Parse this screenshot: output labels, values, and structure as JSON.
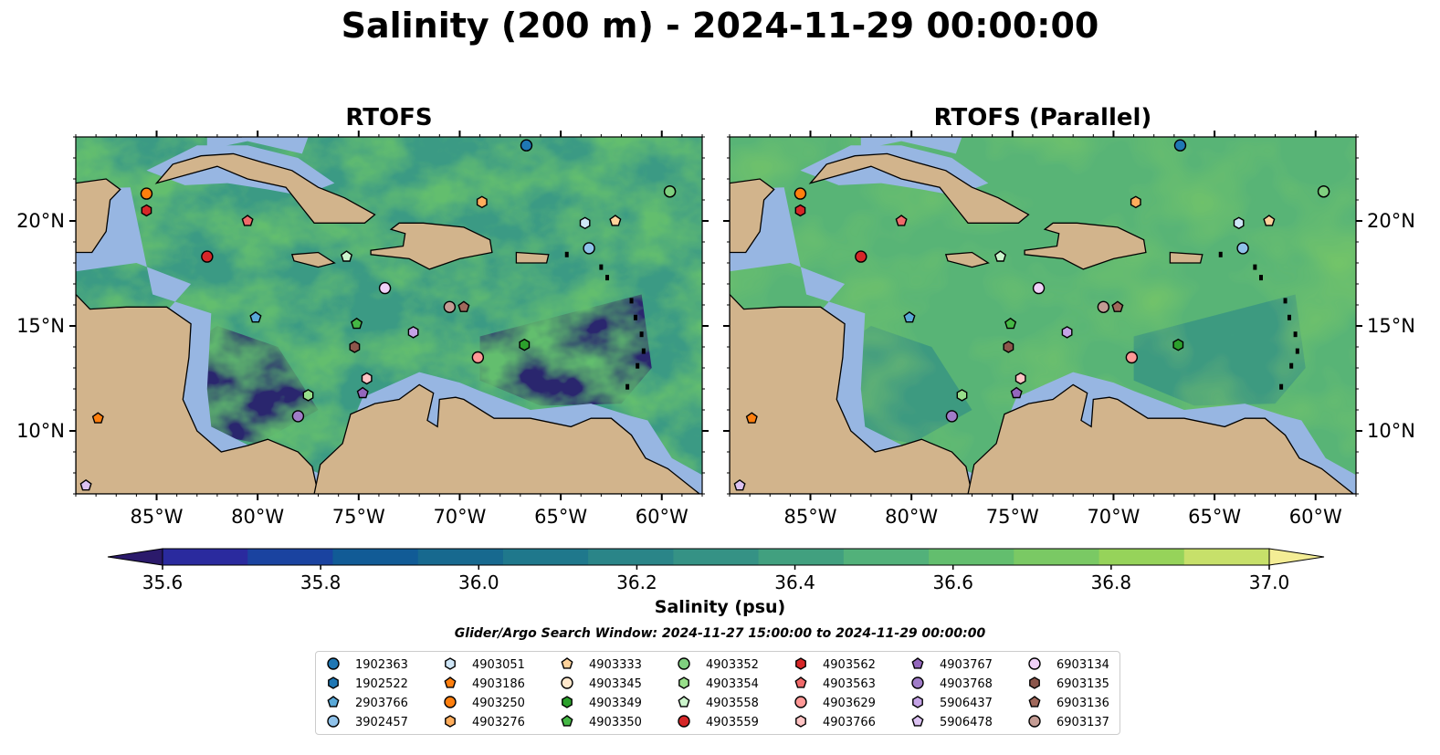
{
  "title": "Salinity (200 m) - 2024-11-29 00:00:00",
  "panels": [
    {
      "title": "RTOFS"
    },
    {
      "title": "RTOFS (Parallel)"
    }
  ],
  "x_ticks": [
    "85°W",
    "80°W",
    "75°W",
    "70°W",
    "65°W",
    "60°W"
  ],
  "x_tick_values": [
    -85,
    -80,
    -75,
    -70,
    -65,
    -60
  ],
  "y_ticks": [
    "20°N",
    "15°N",
    "10°N"
  ],
  "y_tick_values": [
    20,
    15,
    10
  ],
  "extent": {
    "lon": [
      -89,
      -58
    ],
    "lat": [
      7,
      24
    ]
  },
  "colorbar": {
    "label": "Salinity (psu)",
    "ticks": [
      "35.6",
      "35.8",
      "36.0",
      "36.2",
      "36.4",
      "36.6",
      "36.8",
      "37.0"
    ],
    "tick_values": [
      35.6,
      35.8,
      36.0,
      36.2,
      36.4,
      36.6,
      36.8,
      37.0
    ],
    "min": 35.6,
    "max": 37.0,
    "colors": [
      "#2b1a6b",
      "#2a2a9e",
      "#1a43a0",
      "#115b96",
      "#17698f",
      "#1f788c",
      "#2a8588",
      "#359285",
      "#41a07f",
      "#52b17a",
      "#63be6e",
      "#7ac964",
      "#96d35a",
      "#c7e06a",
      "#f4ed95"
    ]
  },
  "search_window": "Glider/Argo Search Window: 2024-11-27 15:00:00 to 2024-11-29 00:00:00",
  "colors": {
    "land": "#d2b48c",
    "shelf": "#97b6e2",
    "deep_ocean": "#2b1a6b"
  },
  "floats": [
    {
      "id": "1902363",
      "marker": "circle",
      "color": "#1f77b4",
      "lon": -66.7,
      "lat": 23.6
    },
    {
      "id": "1902522",
      "marker": "hexagon",
      "color": "#1f77b4",
      "lon": -59.6,
      "lat": 21.4
    },
    {
      "id": "2903766",
      "marker": "pentagon",
      "color": "#5aa9d8",
      "lon": -80.1,
      "lat": 15.4
    },
    {
      "id": "3902457",
      "marker": "circle",
      "color": "#8fc2ea",
      "lon": -63.6,
      "lat": 18.7
    },
    {
      "id": "4903051",
      "marker": "hexagon",
      "color": "#cfe6f7",
      "lon": -63.8,
      "lat": 19.9
    },
    {
      "id": "4903186",
      "marker": "pentagon",
      "color": "#ff7f0e",
      "lon": -87.9,
      "lat": 10.6
    },
    {
      "id": "4903250",
      "marker": "circle",
      "color": "#ff7f0e",
      "lon": -85.5,
      "lat": 21.3
    },
    {
      "id": "4903276",
      "marker": "hexagon",
      "color": "#ffad5c",
      "lon": -68.9,
      "lat": 20.9
    },
    {
      "id": "4903333",
      "marker": "pentagon",
      "color": "#ffd39b",
      "lon": -62.3,
      "lat": 20.0
    },
    {
      "id": "4903345",
      "marker": "circle",
      "color": "#ffe8cc",
      "lon": -59.6,
      "lat": 21.4
    },
    {
      "id": "4903349",
      "marker": "hexagon",
      "color": "#2ca02c",
      "lon": -66.8,
      "lat": 14.1
    },
    {
      "id": "4903350",
      "marker": "pentagon",
      "color": "#45b845",
      "lon": -75.1,
      "lat": 15.1
    },
    {
      "id": "4903352",
      "marker": "circle",
      "color": "#7fd07f",
      "lon": -59.6,
      "lat": 21.4
    },
    {
      "id": "4903354",
      "marker": "hexagon",
      "color": "#98df8a",
      "lon": -77.5,
      "lat": 11.7
    },
    {
      "id": "4903558",
      "marker": "pentagon",
      "color": "#ccf5cc",
      "lon": -75.6,
      "lat": 18.3
    },
    {
      "id": "4903559",
      "marker": "circle",
      "color": "#d62728",
      "lon": -82.5,
      "lat": 18.3
    },
    {
      "id": "4903562",
      "marker": "hexagon",
      "color": "#d62728",
      "lon": -85.5,
      "lat": 20.5
    },
    {
      "id": "4903563",
      "marker": "pentagon",
      "color": "#f06a6a",
      "lon": -80.5,
      "lat": 20.0
    },
    {
      "id": "4903629",
      "marker": "circle",
      "color": "#ff9896",
      "lon": -69.1,
      "lat": 13.5
    },
    {
      "id": "4903766",
      "marker": "hexagon",
      "color": "#ffc4c4",
      "lon": -74.6,
      "lat": 12.5
    },
    {
      "id": "4903767",
      "marker": "pentagon",
      "color": "#9467bd",
      "lon": -74.8,
      "lat": 11.8
    },
    {
      "id": "4903768",
      "marker": "circle",
      "color": "#a07cc8",
      "lon": -78.0,
      "lat": 10.7
    },
    {
      "id": "5906437",
      "marker": "hexagon",
      "color": "#c5a3e6",
      "lon": -72.3,
      "lat": 14.7
    },
    {
      "id": "5906478",
      "marker": "pentagon",
      "color": "#dcc2f2",
      "lon": -88.5,
      "lat": 7.4
    },
    {
      "id": "6903134",
      "marker": "circle",
      "color": "#f0d0f8",
      "lon": -73.7,
      "lat": 16.8
    },
    {
      "id": "6903135",
      "marker": "hexagon",
      "color": "#8c564b",
      "lon": -75.2,
      "lat": 14.0
    },
    {
      "id": "6903136",
      "marker": "pentagon",
      "color": "#a0685b",
      "lon": -69.8,
      "lat": 15.9
    },
    {
      "id": "6903137",
      "marker": "circle",
      "color": "#c49c94",
      "lon": -70.5,
      "lat": 15.9
    }
  ]
}
